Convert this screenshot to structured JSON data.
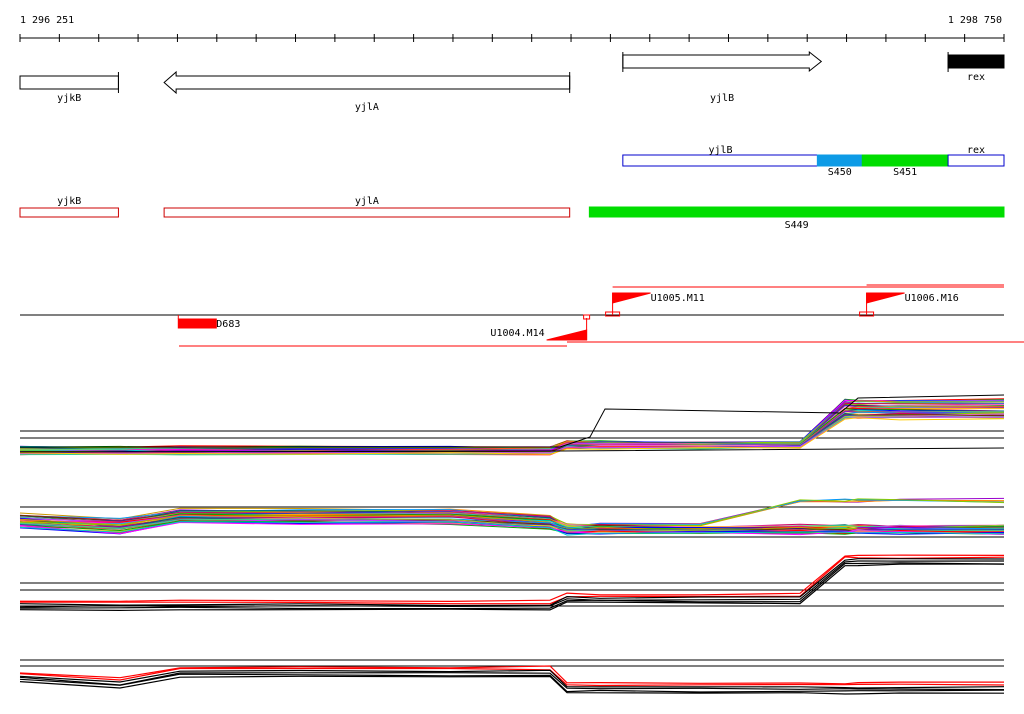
{
  "ruler": {
    "start_label": "1 296 251",
    "end_label": "1 298 750",
    "start": 1296251,
    "end": 1298750
  },
  "colors": {
    "gene_outline": "#000000",
    "transcript_outline": "#0000cc",
    "bsu_outline": "#cc0000",
    "segment_blue": "#0d9be6",
    "segment_green": "#00dd00",
    "promoter": "#ff0000",
    "terminator": "#ff0000",
    "black_gene": "#000000"
  },
  "genes": [
    {
      "label": "yjkB",
      "start": 1296251,
      "end": 1296501,
      "strand": "none"
    },
    {
      "label": "yjlA",
      "start": 1296617,
      "end": 1297647,
      "strand": "-"
    },
    {
      "label": "yjlB",
      "start": 1297782,
      "end": 1298286,
      "strand": "+"
    },
    {
      "label": "rex",
      "start": 1298608,
      "end": 1298750,
      "strand": "filled"
    }
  ],
  "transcripts": [
    {
      "label": "yjlB",
      "start": 1297782,
      "end": 1298530,
      "label_pos": 1298030
    },
    {
      "label": "S450",
      "start": 1298276,
      "end": 1298390,
      "fill": "blue",
      "label_below": true
    },
    {
      "label": "S451",
      "start": 1298390,
      "end": 1298608,
      "fill": "green",
      "label_below": true
    },
    {
      "label": "rex",
      "start": 1298608,
      "end": 1298750,
      "label_pos": 1298679
    }
  ],
  "bsu_features": [
    {
      "label": "yjkB",
      "start": 1296251,
      "end": 1296501
    },
    {
      "label": "yjlA",
      "start": 1296617,
      "end": 1297647
    },
    {
      "label": "S449",
      "start": 1297697,
      "end": 1298750,
      "filled": true
    }
  ],
  "regulatory": {
    "promoters": [
      {
        "label": "U1005.M11",
        "pos": 1297756,
        "dir": "+"
      },
      {
        "label": "U1006.M16",
        "pos": 1298401,
        "dir": "+"
      },
      {
        "label": "U1004.M14",
        "pos": 1297690,
        "dir": "-"
      }
    ],
    "terminator": {
      "label": "D683",
      "start": 1296653,
      "end": 1296753
    }
  },
  "expression_tracks": [
    {
      "name": "track-1",
      "series_count": 40
    },
    {
      "name": "track-2",
      "series_count": 40
    },
    {
      "name": "track-3",
      "series_count": 6
    },
    {
      "name": "track-4",
      "series_count": 6
    }
  ]
}
